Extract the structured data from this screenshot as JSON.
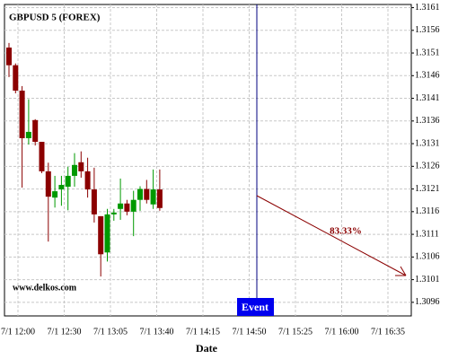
{
  "chart_data": {
    "type": "candlestick",
    "title": "GBPUSD 5 (FOREX)",
    "source": "www.delkos.com",
    "x_label": "Date",
    "xticks": [
      "7/1 12:00",
      "7/1 12:30",
      "7/1 13:05",
      "7/1 13:40",
      "7/1 14:15",
      "7/1 14:50",
      "7/1 15:25",
      "7/1 16:00",
      "7/1 16:35"
    ],
    "open": [
      1.31522,
      1.31483,
      1.31427,
      1.31322,
      1.31362,
      1.31314,
      1.31249,
      1.31191,
      1.31209,
      1.31215,
      1.31239,
      1.31269,
      1.31249,
      1.31209,
      1.3115,
      1.3107,
      1.31154,
      1.31166,
      1.31178,
      1.3116,
      1.31186,
      1.3121,
      1.31176,
      1.31209
    ],
    "high": [
      1.31532,
      1.31487,
      1.31437,
      1.31408,
      1.31364,
      1.31314,
      1.31268,
      1.31239,
      1.31239,
      1.31259,
      1.31289,
      1.31293,
      1.31279,
      1.31257,
      1.3115,
      1.31166,
      1.31166,
      1.31233,
      1.31186,
      1.31206,
      1.31216,
      1.3123,
      1.31253,
      1.31253
    ],
    "low": [
      1.31457,
      1.31421,
      1.31213,
      1.31308,
      1.31306,
      1.31245,
      1.31094,
      1.31169,
      1.31173,
      1.31163,
      1.31215,
      1.31235,
      1.31191,
      1.31136,
      1.31017,
      1.3105,
      1.3114,
      1.31142,
      1.31152,
      1.31106,
      1.31162,
      1.31178,
      1.31166,
      1.31162
    ],
    "close": [
      1.31483,
      1.31427,
      1.31322,
      1.31336,
      1.31314,
      1.31249,
      1.31193,
      1.31205,
      1.31219,
      1.31239,
      1.31263,
      1.31249,
      1.31209,
      1.31154,
      1.31066,
      1.31154,
      1.31158,
      1.31178,
      1.3116,
      1.31186,
      1.3121,
      1.31186,
      1.31209,
      1.31168
    ],
    "up_color": "#009900",
    "down_color": "#8b0000",
    "ylim": [
      1.3093,
      1.31617
    ],
    "yticks": [
      1.3096,
      1.3101,
      1.3106,
      1.3111,
      1.3116,
      1.3121,
      1.3126,
      1.3131,
      1.3136,
      1.3141,
      1.3146,
      1.3151,
      1.3156,
      1.3161
    ],
    "grid": true,
    "event_label": "Event",
    "forecast_label": "83.33%"
  }
}
